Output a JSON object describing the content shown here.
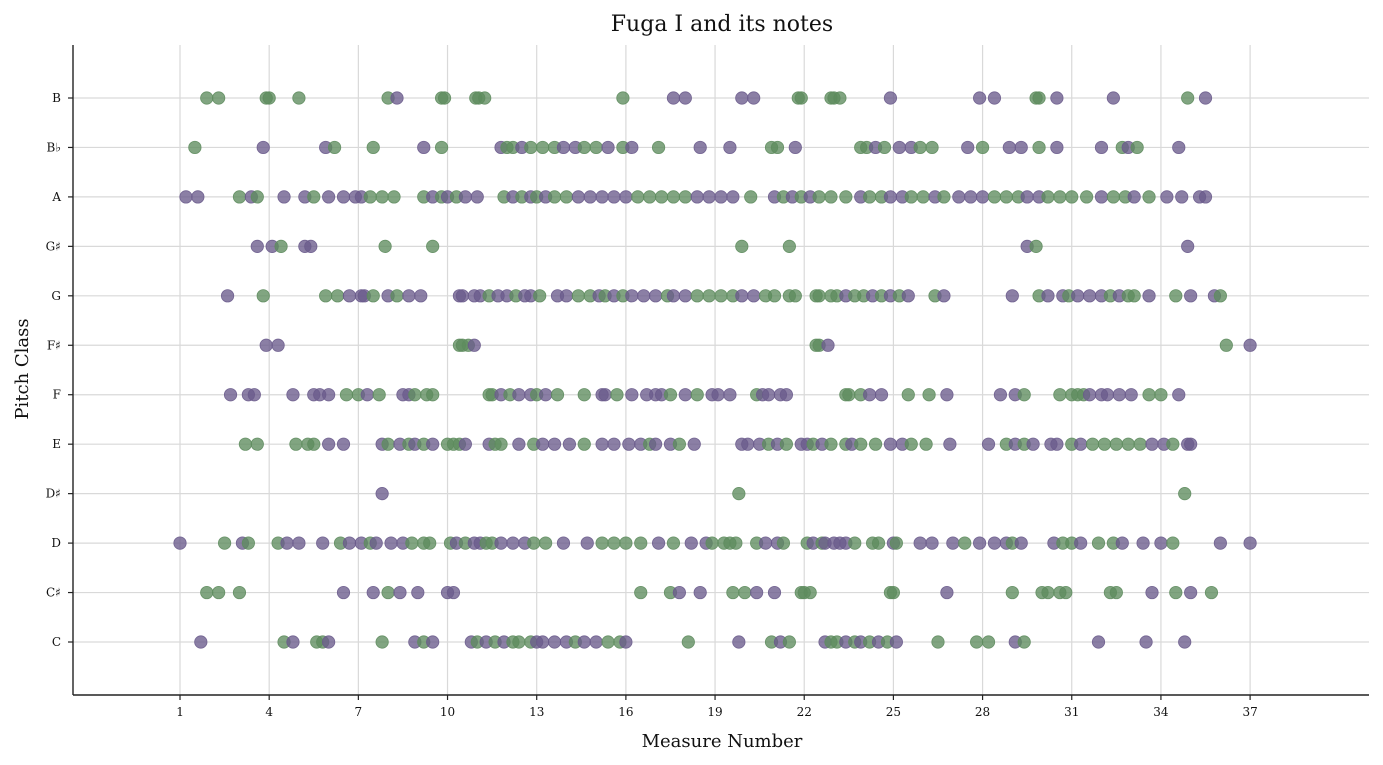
{
  "chart_data": {
    "type": "scatter",
    "title": "Fuga I and its notes",
    "xlabel": "Measure Number",
    "ylabel": "Pitch Class",
    "x_ticks": [
      1,
      4,
      7,
      10,
      13,
      16,
      19,
      22,
      25,
      28,
      31,
      34,
      37
    ],
    "y_categories": [
      "C",
      "C♯",
      "D",
      "D♯",
      "E",
      "F",
      "F♯",
      "G",
      "G♯",
      "A",
      "B♭",
      "B"
    ],
    "xlim": [
      -2.6,
      41.0
    ],
    "grid": true,
    "colors": {
      "green": "#5e8c5e",
      "purple": "#6a5b8c"
    },
    "points": [
      {
        "pitch": "B",
        "x": [
          1.9,
          2.3,
          3.9,
          4.0,
          5.0,
          8.0,
          8.3,
          9.8,
          9.9,
          10.95,
          11.05,
          11.25,
          15.9,
          17.6,
          18.0,
          19.9,
          20.3,
          21.8,
          21.9,
          22.9,
          23.0,
          23.2,
          24.9,
          27.9,
          28.4,
          29.8,
          29.9,
          30.5,
          32.4,
          34.9,
          35.5
        ]
      },
      {
        "pitch": "B♭",
        "x": [
          1.5,
          3.8,
          5.9,
          6.2,
          7.5,
          9.2,
          9.8,
          11.8,
          12.0,
          12.2,
          12.5,
          12.8,
          13.2,
          13.6,
          13.9,
          14.3,
          14.6,
          15.0,
          15.4,
          15.9,
          16.2,
          17.1,
          18.5,
          19.5,
          20.9,
          21.1,
          21.7,
          23.9,
          24.1,
          24.4,
          24.7,
          25.2,
          25.6,
          25.9,
          26.3,
          27.5,
          28.0,
          28.9,
          29.3,
          29.9,
          30.5,
          32.0,
          32.7,
          32.9,
          33.2,
          34.6
        ]
      },
      {
        "pitch": "A",
        "x": [
          1.2,
          1.6,
          3.0,
          3.4,
          3.6,
          4.5,
          5.2,
          5.5,
          6.0,
          6.5,
          6.9,
          7.1,
          7.4,
          7.8,
          8.2,
          9.2,
          9.5,
          9.8,
          10.0,
          10.3,
          10.6,
          11.0,
          11.9,
          12.2,
          12.5,
          12.8,
          13.0,
          13.3,
          13.6,
          14.0,
          14.4,
          14.8,
          15.2,
          15.6,
          16.0,
          16.4,
          16.8,
          17.2,
          17.6,
          18.0,
          18.4,
          18.8,
          19.2,
          19.6,
          20.2,
          21.0,
          21.3,
          21.6,
          21.9,
          22.2,
          22.5,
          22.9,
          23.4,
          23.9,
          24.2,
          24.6,
          24.9,
          25.3,
          25.6,
          26.0,
          26.4,
          26.7,
          27.2,
          27.6,
          28.0,
          28.4,
          28.8,
          29.2,
          29.5,
          29.9,
          30.2,
          30.6,
          31.0,
          31.5,
          32.0,
          32.4,
          32.8,
          33.1,
          33.6,
          34.2,
          34.7,
          35.3,
          35.5
        ]
      },
      {
        "pitch": "G♯",
        "x": [
          3.6,
          4.1,
          4.4,
          5.2,
          5.4,
          7.9,
          9.5,
          19.9,
          21.5,
          29.5,
          29.8,
          34.9
        ]
      },
      {
        "pitch": "G",
        "x": [
          2.6,
          3.8,
          5.9,
          6.3,
          6.7,
          7.1,
          7.2,
          7.5,
          8.0,
          8.3,
          8.7,
          9.1,
          10.4,
          10.5,
          10.9,
          11.1,
          11.4,
          11.7,
          12.0,
          12.3,
          12.6,
          12.8,
          13.1,
          13.7,
          14.0,
          14.4,
          14.8,
          15.1,
          15.3,
          15.6,
          15.9,
          16.2,
          16.6,
          17.0,
          17.4,
          17.6,
          18.0,
          18.4,
          18.8,
          19.2,
          19.6,
          19.9,
          20.3,
          20.7,
          21.0,
          21.5,
          21.7,
          22.4,
          22.5,
          22.9,
          23.1,
          23.4,
          23.7,
          24.0,
          24.3,
          24.6,
          24.9,
          25.2,
          25.5,
          26.4,
          26.7,
          29.0,
          29.9,
          30.2,
          30.7,
          30.9,
          31.2,
          31.6,
          32.0,
          32.3,
          32.6,
          32.9,
          33.1,
          33.6,
          34.5,
          35.0,
          35.8,
          36.0
        ]
      },
      {
        "pitch": "F♯",
        "x": [
          3.9,
          4.3,
          10.4,
          10.5,
          10.7,
          10.9,
          22.4,
          22.5,
          22.8,
          36.2,
          37.0
        ]
      },
      {
        "pitch": "F",
        "x": [
          2.7,
          3.3,
          3.5,
          4.8,
          5.5,
          5.7,
          6.0,
          6.6,
          7.0,
          7.3,
          7.7,
          8.5,
          8.7,
          8.9,
          9.3,
          9.5,
          11.4,
          11.5,
          11.8,
          12.1,
          12.4,
          12.8,
          13.0,
          13.3,
          13.7,
          14.6,
          15.2,
          15.3,
          15.7,
          16.2,
          16.7,
          17.0,
          17.2,
          17.5,
          18.0,
          18.4,
          18.9,
          19.1,
          19.5,
          20.4,
          20.6,
          20.8,
          21.2,
          21.4,
          23.4,
          23.5,
          23.9,
          24.2,
          24.6,
          25.5,
          26.2,
          26.8,
          28.6,
          29.1,
          29.4,
          30.6,
          31.0,
          31.2,
          31.4,
          31.6,
          32.0,
          32.2,
          32.6,
          33.0,
          33.6,
          34.0,
          34.6
        ]
      },
      {
        "pitch": "E",
        "x": [
          3.2,
          3.6,
          4.9,
          5.3,
          5.5,
          6.0,
          6.5,
          7.8,
          8.0,
          8.4,
          8.7,
          8.9,
          9.2,
          9.5,
          10.0,
          10.2,
          10.4,
          10.6,
          11.4,
          11.6,
          11.8,
          12.4,
          12.9,
          13.2,
          13.6,
          14.1,
          14.6,
          15.2,
          15.6,
          16.1,
          16.5,
          16.8,
          17.0,
          17.5,
          17.8,
          18.3,
          19.9,
          20.1,
          20.5,
          20.8,
          21.1,
          21.4,
          21.9,
          22.1,
          22.3,
          22.6,
          22.9,
          23.4,
          23.6,
          23.9,
          24.4,
          24.9,
          25.3,
          25.6,
          26.1,
          26.9,
          28.2,
          28.8,
          29.1,
          29.4,
          29.7,
          30.3,
          30.5,
          31.0,
          31.3,
          31.7,
          32.1,
          32.5,
          32.9,
          33.3,
          33.7,
          34.1,
          34.4,
          34.9,
          35.0
        ]
      },
      {
        "pitch": "D♯",
        "x": [
          7.8,
          19.8,
          34.8
        ]
      },
      {
        "pitch": "D",
        "x": [
          1.0,
          2.5,
          3.1,
          3.3,
          4.3,
          4.6,
          5.0,
          5.8,
          6.4,
          6.7,
          7.1,
          7.4,
          7.6,
          8.1,
          8.5,
          8.8,
          9.2,
          9.4,
          10.1,
          10.3,
          10.6,
          10.9,
          11.1,
          11.3,
          11.5,
          11.8,
          12.2,
          12.6,
          12.9,
          13.3,
          13.9,
          14.7,
          15.2,
          15.6,
          16.0,
          16.5,
          17.1,
          17.6,
          18.2,
          18.7,
          18.9,
          19.3,
          19.5,
          19.7,
          20.4,
          20.7,
          21.1,
          21.3,
          22.1,
          22.3,
          22.6,
          22.7,
          23.0,
          23.2,
          23.4,
          23.7,
          24.3,
          24.5,
          25.0,
          25.1,
          25.9,
          26.3,
          27.0,
          27.4,
          27.9,
          28.4,
          28.8,
          29.0,
          29.3,
          30.4,
          30.7,
          31.0,
          31.3,
          31.9,
          32.4,
          32.7,
          33.4,
          34.0,
          34.4,
          36.0,
          37.0
        ]
      },
      {
        "pitch": "C♯",
        "x": [
          1.9,
          2.3,
          3.0,
          6.5,
          7.5,
          8.0,
          8.4,
          9.0,
          10.0,
          10.2,
          16.5,
          17.5,
          17.8,
          18.5,
          19.6,
          20.0,
          20.4,
          21.0,
          21.9,
          22.0,
          22.2,
          24.9,
          25.0,
          26.8,
          29.0,
          30.0,
          30.2,
          30.6,
          30.8,
          32.3,
          32.5,
          33.7,
          34.5,
          35.0,
          35.7
        ]
      },
      {
        "pitch": "C",
        "x": [
          1.7,
          4.5,
          4.8,
          5.6,
          5.8,
          6.0,
          7.8,
          8.9,
          9.2,
          9.5,
          10.8,
          11.0,
          11.3,
          11.6,
          11.9,
          12.2,
          12.4,
          12.8,
          13.0,
          13.2,
          13.6,
          14.0,
          14.3,
          14.6,
          15.0,
          15.4,
          15.8,
          16.0,
          18.1,
          19.8,
          20.9,
          21.2,
          21.5,
          22.7,
          22.9,
          23.1,
          23.4,
          23.7,
          23.9,
          24.2,
          24.5,
          24.8,
          25.1,
          26.5,
          27.8,
          28.2,
          29.1,
          29.4,
          31.9,
          33.5,
          34.8
        ]
      }
    ]
  }
}
